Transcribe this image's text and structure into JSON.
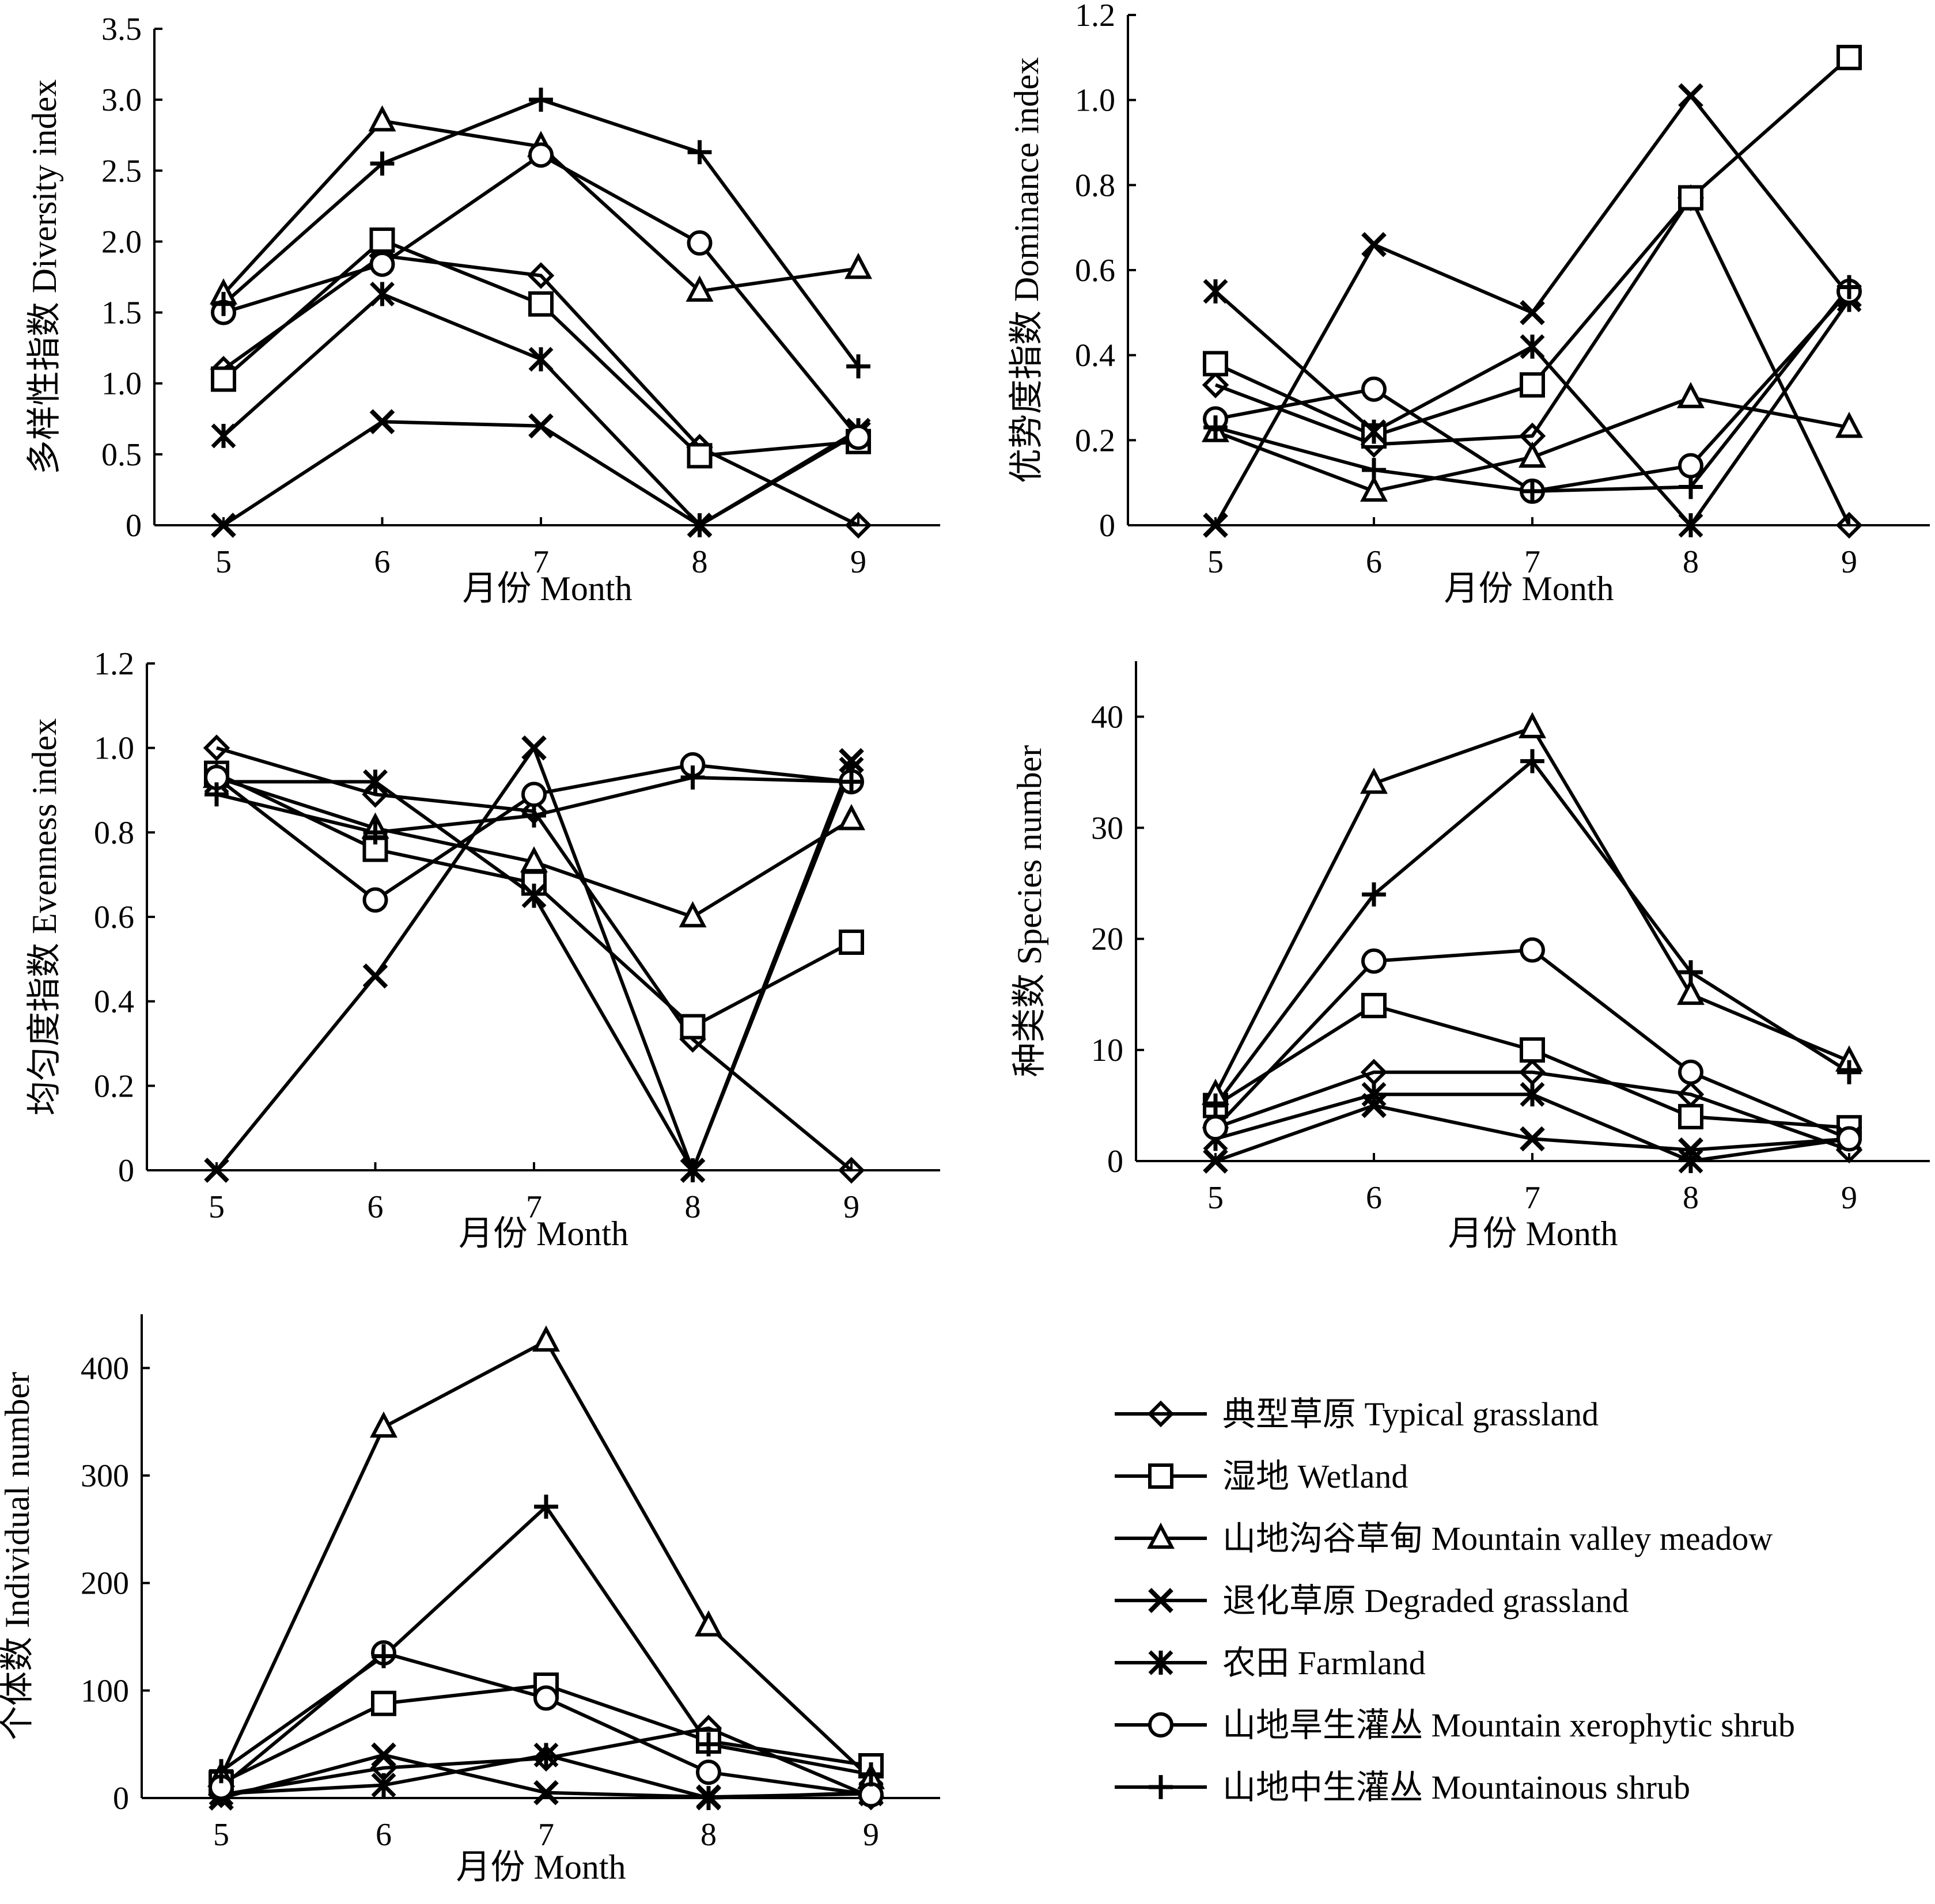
{
  "figure": {
    "legend": [
      {
        "marker": "diamond",
        "label": "典型草原 Typical grassland"
      },
      {
        "marker": "square",
        "label": "湿地 Wetland"
      },
      {
        "marker": "triangle",
        "label": "山地沟谷草甸 Mountain valley meadow"
      },
      {
        "marker": "x",
        "label": "退化草原 Degraded grassland"
      },
      {
        "marker": "asterisk",
        "label": "农田 Farmland"
      },
      {
        "marker": "circle",
        "label": "山地旱生灌丛 Mountain xerophytic shrub"
      },
      {
        "marker": "plus",
        "label": "山地中生灌丛 Mountainous shrub"
      }
    ],
    "line_color": "#000000"
  },
  "chart_data": [
    {
      "type": "line",
      "title": "",
      "xlabel": "月份 Month",
      "ylabel": "多样性指数 Diversity index",
      "x": [
        "5",
        "6",
        "7",
        "8",
        "9"
      ],
      "ylim": [
        0,
        3.5
      ],
      "yticks": [
        "0",
        "0.5",
        "1.0",
        "1.5",
        "2.0",
        "2.5",
        "3.0",
        "3.5"
      ],
      "series": [
        {
          "name": "典型草原 Typical grassland",
          "marker": "diamond",
          "values": [
            1.1,
            1.9,
            1.76,
            0.55,
            0.0
          ]
        },
        {
          "name": "湿地 Wetland",
          "marker": "square",
          "values": [
            1.03,
            2.01,
            1.56,
            0.49,
            0.59
          ]
        },
        {
          "name": "山地沟谷草甸 Mountain valley meadow",
          "marker": "triangle",
          "values": [
            1.63,
            2.85,
            2.67,
            1.65,
            1.81
          ]
        },
        {
          "name": "退化草原 Degraded grassland",
          "marker": "x",
          "values": [
            0.0,
            0.73,
            0.7,
            0.0,
            0.65
          ]
        },
        {
          "name": "农田 Farmland",
          "marker": "asterisk",
          "values": [
            0.63,
            1.63,
            1.17,
            0.0,
            0.67
          ]
        },
        {
          "name": "山地旱生灌丛 Mountain xerophytic shrub",
          "marker": "circle",
          "values": [
            1.5,
            1.84,
            2.61,
            1.99,
            0.62
          ]
        },
        {
          "name": "山地中生灌丛 Mountainous shrub",
          "marker": "plus",
          "values": [
            1.56,
            2.55,
            3.0,
            2.63,
            1.12
          ]
        }
      ]
    },
    {
      "type": "line",
      "title": "",
      "xlabel": "月份 Month",
      "ylabel": "优势度指数 Dominance index",
      "x": [
        "5",
        "6",
        "7",
        "8",
        "9"
      ],
      "ylim": [
        0,
        1.2
      ],
      "yticks": [
        "0",
        "0.2",
        "0.4",
        "0.6",
        "0.8",
        "1.0",
        "1.2"
      ],
      "series": [
        {
          "name": "典型草原 Typical grassland",
          "marker": "diamond",
          "values": [
            0.33,
            0.19,
            0.21,
            0.77,
            0.0
          ]
        },
        {
          "name": "湿地 Wetland",
          "marker": "square",
          "values": [
            0.38,
            0.21,
            0.33,
            0.77,
            1.1
          ]
        },
        {
          "name": "山地沟谷草甸 Mountain valley meadow",
          "marker": "triangle",
          "values": [
            0.22,
            0.08,
            0.16,
            0.3,
            0.23
          ]
        },
        {
          "name": "退化草原 Degraded grassland",
          "marker": "x",
          "values": [
            0.0,
            0.66,
            0.5,
            1.01,
            0.54
          ]
        },
        {
          "name": "农田 Farmland",
          "marker": "asterisk",
          "values": [
            0.55,
            0.22,
            0.42,
            0.0,
            0.53
          ]
        },
        {
          "name": "山地旱生灌丛 Mountain xerophytic shrub",
          "marker": "circle",
          "values": [
            0.25,
            0.32,
            0.08,
            0.14,
            0.55
          ]
        },
        {
          "name": "山地中生灌丛 Mountainous shrub",
          "marker": "plus",
          "values": [
            0.23,
            0.13,
            0.08,
            0.09,
            0.56
          ]
        }
      ]
    },
    {
      "type": "line",
      "title": "",
      "xlabel": "月份 Month",
      "ylabel": "均匀度指数 Evenness index",
      "x": [
        "5",
        "6",
        "7",
        "8",
        "9"
      ],
      "ylim": [
        0,
        1.2
      ],
      "yticks": [
        "0",
        "0.2",
        "0.4",
        "0.6",
        "0.8",
        "1.0",
        "1.2"
      ],
      "series": [
        {
          "name": "典型草原 Typical grassland",
          "marker": "diamond",
          "values": [
            1.0,
            0.89,
            0.85,
            0.31,
            0.0
          ]
        },
        {
          "name": "湿地 Wetland",
          "marker": "square",
          "values": [
            0.94,
            0.76,
            0.68,
            0.34,
            0.54
          ]
        },
        {
          "name": "山地沟谷草甸 Mountain valley meadow",
          "marker": "triangle",
          "values": [
            0.93,
            0.81,
            0.73,
            0.6,
            0.83
          ]
        },
        {
          "name": "退化草原 Degraded grassland",
          "marker": "x",
          "values": [
            0.0,
            0.46,
            1.0,
            0.0,
            0.97
          ]
        },
        {
          "name": "农田 Farmland",
          "marker": "asterisk",
          "values": [
            0.92,
            0.92,
            0.65,
            0.0,
            0.95
          ]
        },
        {
          "name": "山地旱生灌丛 Mountain xerophytic shrub",
          "marker": "circle",
          "values": [
            0.93,
            0.64,
            0.89,
            0.96,
            0.92
          ]
        },
        {
          "name": "山地中生灌丛 Mountainous shrub",
          "marker": "plus",
          "values": [
            0.89,
            0.8,
            0.84,
            0.93,
            0.92
          ]
        }
      ]
    },
    {
      "type": "line",
      "title": "",
      "xlabel": "月份 Month",
      "ylabel": "种类数 Species number",
      "x": [
        "5",
        "6",
        "7",
        "8",
        "9"
      ],
      "ylim": [
        0,
        45
      ],
      "yticks": [
        "0",
        "10",
        "20",
        "30",
        "40"
      ],
      "series": [
        {
          "name": "典型草原 Typical grassland",
          "marker": "diamond",
          "values": [
            3,
            8,
            8,
            6,
            1
          ]
        },
        {
          "name": "湿地 Wetland",
          "marker": "square",
          "values": [
            5,
            14,
            10,
            4,
            3
          ]
        },
        {
          "name": "山地沟谷草甸 Mountain valley meadow",
          "marker": "triangle",
          "values": [
            6,
            34,
            39,
            15,
            9
          ]
        },
        {
          "name": "退化草原 Degraded grassland",
          "marker": "x",
          "values": [
            0,
            5,
            2,
            1,
            2
          ]
        },
        {
          "name": "农田 Farmland",
          "marker": "asterisk",
          "values": [
            2,
            6,
            6,
            0,
            2
          ]
        },
        {
          "name": "山地旱生灌丛 Mountain xerophytic shrub",
          "marker": "circle",
          "values": [
            3,
            18,
            19,
            8,
            2
          ]
        },
        {
          "name": "山地中生灌丛 Mountainous shrub",
          "marker": "plus",
          "values": [
            5,
            24,
            36,
            17,
            8
          ]
        }
      ]
    },
    {
      "type": "line",
      "title": "",
      "xlabel": "月份 Month",
      "ylabel": "个体数 Individual number",
      "x": [
        "5",
        "6",
        "7",
        "8",
        "9"
      ],
      "ylim": [
        0,
        450
      ],
      "yticks": [
        "0",
        "100",
        "200",
        "300",
        "400"
      ],
      "series": [
        {
          "name": "典型草原 Typical grassland",
          "marker": "diamond",
          "values": [
            3,
            28,
            37,
            65,
            1
          ]
        },
        {
          "name": "湿地 Wetland",
          "marker": "square",
          "values": [
            14,
            88,
            105,
            53,
            30
          ]
        },
        {
          "name": "山地沟谷草甸 Mountain valley meadow",
          "marker": "triangle",
          "values": [
            20,
            345,
            425,
            160,
            18
          ]
        },
        {
          "name": "退化草原 Degraded grassland",
          "marker": "x",
          "values": [
            0,
            40,
            5,
            1,
            4
          ]
        },
        {
          "name": "农田 Farmland",
          "marker": "asterisk",
          "values": [
            4,
            12,
            40,
            0,
            5
          ]
        },
        {
          "name": "山地旱生灌丛 Mountain xerophytic shrub",
          "marker": "circle",
          "values": [
            10,
            135,
            93,
            24,
            3
          ]
        },
        {
          "name": "山地中生灌丛 Mountainous shrub",
          "marker": "plus",
          "values": [
            25,
            132,
            271,
            50,
            22
          ]
        }
      ]
    }
  ]
}
